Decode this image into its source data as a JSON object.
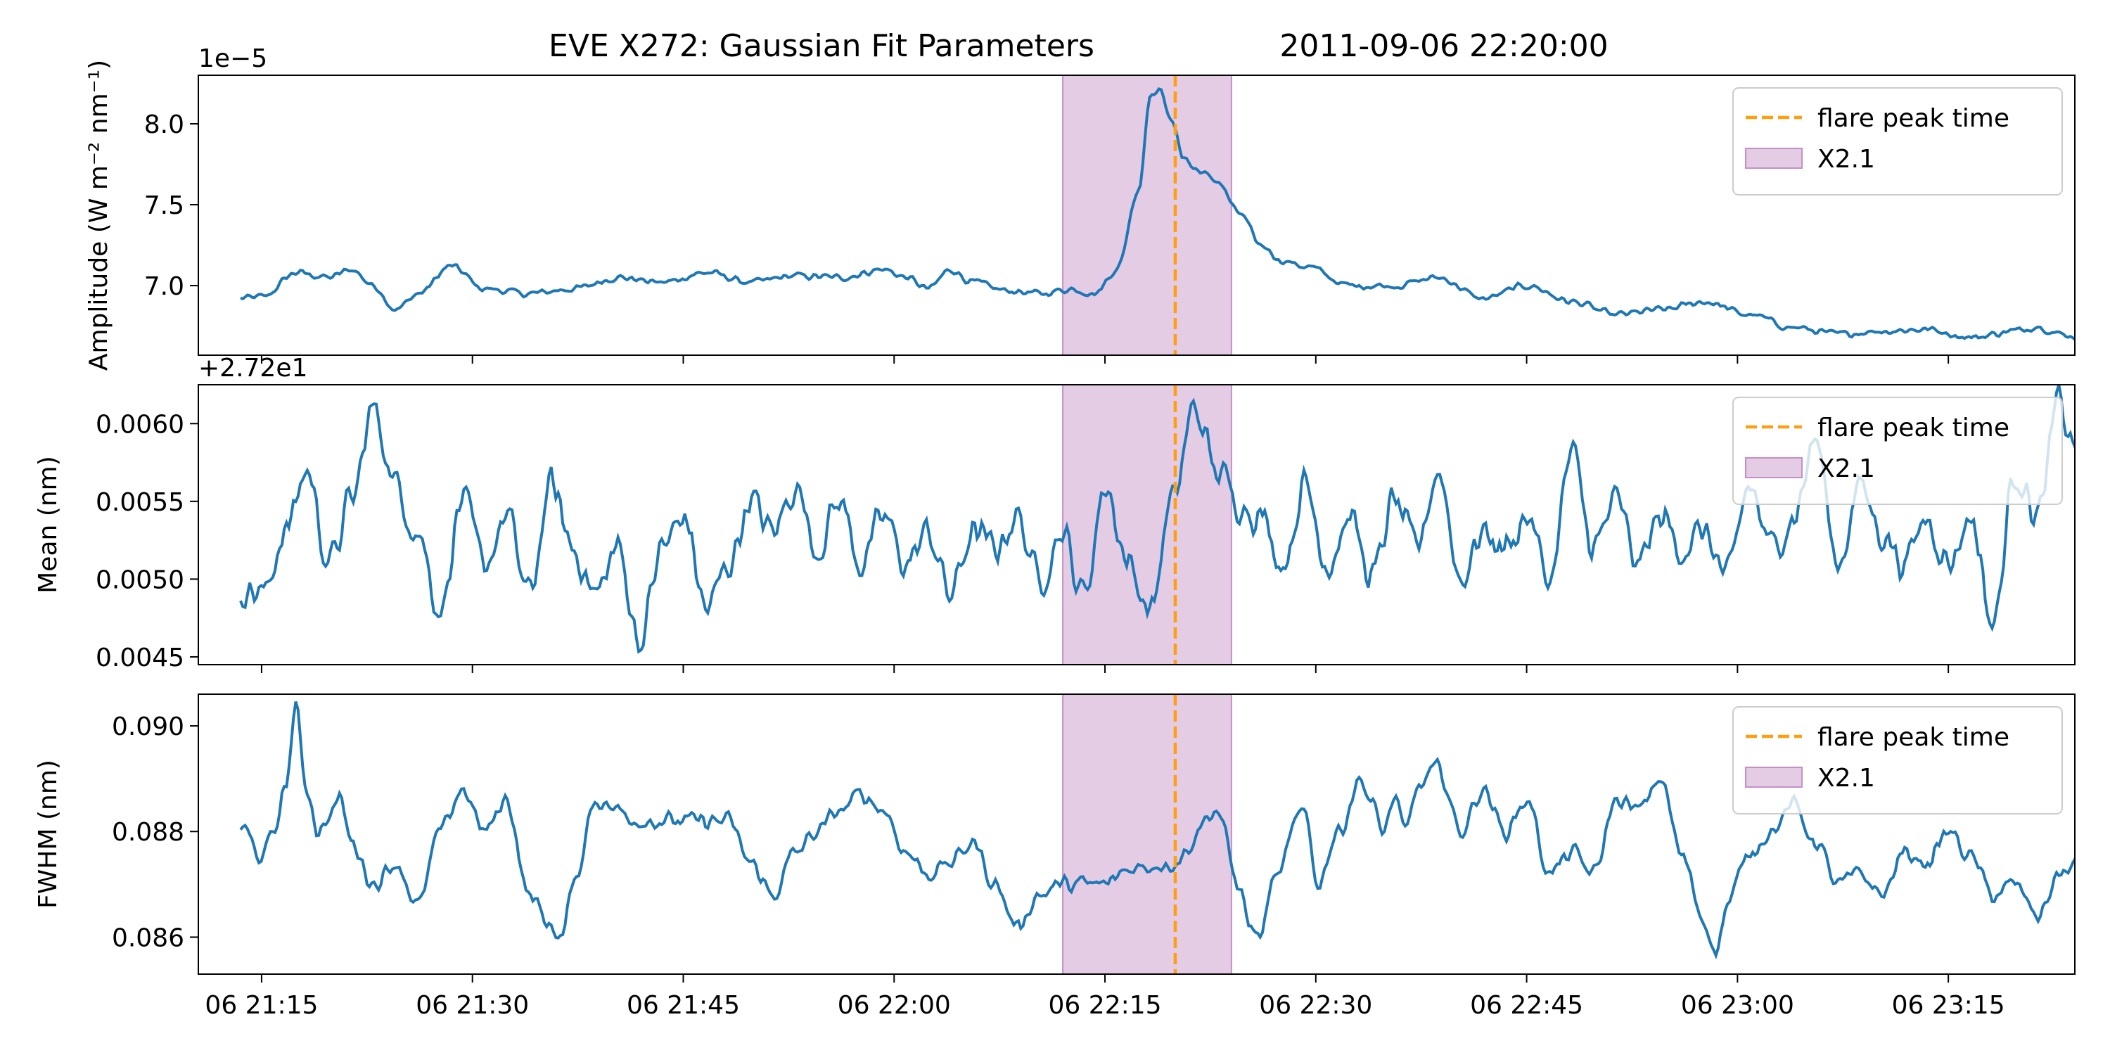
{
  "figure": {
    "title": "EVE X272: Gaussian Fit Parameters",
    "timestamp": "2011-09-06 22:20:00"
  },
  "chart_data": {
    "type": "line",
    "x_axis": {
      "unit": "datetime",
      "range": [
        "2011-09-06 21:10:30",
        "2011-09-06 23:24:00"
      ],
      "ticks": [
        "2011-09-06 21:15:00",
        "2011-09-06 21:30:00",
        "2011-09-06 21:45:00",
        "2011-09-06 22:00:00",
        "2011-09-06 22:15:00",
        "2011-09-06 22:30:00",
        "2011-09-06 22:45:00",
        "2011-09-06 23:00:00",
        "2011-09-06 23:15:00"
      ],
      "tick_labels": [
        "06 21:15",
        "06 21:30",
        "06 21:45",
        "06 22:00",
        "06 22:15",
        "06 22:30",
        "06 22:45",
        "06 23:00",
        "06 23:15"
      ],
      "shared": true
    },
    "flare": {
      "label": "X2.1",
      "start": "2011-09-06 22:12:00",
      "end": "2011-09-06 22:24:00",
      "peak": "2011-09-06 22:20:00",
      "peak_label": "flare peak time",
      "span_color": "#c58fc6",
      "peak_color": "#ff9f0f"
    },
    "line_color": "#1f77b4",
    "legend_position": "upper right",
    "panels": [
      {
        "ylabel": "Amplitude (W m⁻² nm⁻¹)",
        "offset_text": "1e−5",
        "ylim": [
          6.57,
          8.3
        ],
        "yticks": [
          7.0,
          7.5,
          8.0
        ],
        "ytick_labels": [
          "7.0",
          "7.5",
          "8.0"
        ],
        "keypoints": [
          [
            0,
            6.92
          ],
          [
            2,
            6.93
          ],
          [
            5,
            7.08
          ],
          [
            8,
            7.05
          ],
          [
            10,
            7.1
          ],
          [
            12,
            7.0
          ],
          [
            14,
            6.85
          ],
          [
            16,
            6.95
          ],
          [
            19,
            7.12
          ],
          [
            22,
            6.98
          ],
          [
            26,
            6.95
          ],
          [
            30,
            6.98
          ],
          [
            34,
            7.05
          ],
          [
            38,
            7.02
          ],
          [
            42,
            7.08
          ],
          [
            46,
            7.02
          ],
          [
            50,
            7.06
          ],
          [
            54,
            7.05
          ],
          [
            58,
            7.1
          ],
          [
            60,
            7.05
          ],
          [
            62,
            6.98
          ],
          [
            64,
            7.1
          ],
          [
            66,
            7.02
          ],
          [
            69,
            6.97
          ],
          [
            72,
            6.95
          ],
          [
            75,
            6.98
          ],
          [
            77,
            6.95
          ],
          [
            79,
            7.1
          ],
          [
            81,
            7.6
          ],
          [
            82,
            8.18
          ],
          [
            83,
            8.2
          ],
          [
            84,
            8.0
          ],
          [
            85,
            7.8
          ],
          [
            86,
            7.72
          ],
          [
            88,
            7.65
          ],
          [
            90,
            7.45
          ],
          [
            92,
            7.25
          ],
          [
            94,
            7.15
          ],
          [
            96,
            7.12
          ],
          [
            100,
            7.0
          ],
          [
            104,
            7.0
          ],
          [
            108,
            7.05
          ],
          [
            112,
            6.92
          ],
          [
            116,
            7.0
          ],
          [
            120,
            6.9
          ],
          [
            124,
            6.82
          ],
          [
            128,
            6.85
          ],
          [
            132,
            6.9
          ],
          [
            136,
            6.82
          ],
          [
            140,
            6.74
          ],
          [
            144,
            6.7
          ],
          [
            148,
            6.72
          ],
          [
            152,
            6.73
          ],
          [
            156,
            6.68
          ],
          [
            160,
            6.72
          ],
          [
            162,
            6.75
          ],
          [
            164,
            6.7
          ],
          [
            166,
            6.68
          ]
        ],
        "noise_amplitude": 0.03
      },
      {
        "ylabel": "Mean (nm)",
        "offset_text": "+2.72e1",
        "ylim": [
          0.00445,
          0.00625
        ],
        "yticks": [
          0.0045,
          0.005,
          0.0055,
          0.006
        ],
        "ytick_labels": [
          "0.0045",
          "0.0050",
          "0.0055",
          "0.0060"
        ],
        "keypoints": [
          [
            0,
            0.00495
          ],
          [
            2,
            0.0049
          ],
          [
            4,
            0.0053
          ],
          [
            6,
            0.0057
          ],
          [
            8,
            0.0051
          ],
          [
            10,
            0.0055
          ],
          [
            12,
            0.0061
          ],
          [
            14,
            0.0056
          ],
          [
            16,
            0.0053
          ],
          [
            18,
            0.0048
          ],
          [
            20,
            0.0055
          ],
          [
            22,
            0.0051
          ],
          [
            24,
            0.0054
          ],
          [
            26,
            0.0049
          ],
          [
            28,
            0.0056
          ],
          [
            30,
            0.0052
          ],
          [
            32,
            0.0049
          ],
          [
            34,
            0.0052
          ],
          [
            36,
            0.0046
          ],
          [
            38,
            0.0052
          ],
          [
            40,
            0.0054
          ],
          [
            42,
            0.0048
          ],
          [
            44,
            0.0051
          ],
          [
            46,
            0.0055
          ],
          [
            48,
            0.0053
          ],
          [
            50,
            0.0056
          ],
          [
            52,
            0.0052
          ],
          [
            54,
            0.0055
          ],
          [
            56,
            0.0051
          ],
          [
            58,
            0.0054
          ],
          [
            60,
            0.0051
          ],
          [
            62,
            0.0053
          ],
          [
            64,
            0.0049
          ],
          [
            66,
            0.0053
          ],
          [
            68,
            0.0052
          ],
          [
            70,
            0.0054
          ],
          [
            72,
            0.005
          ],
          [
            74,
            0.0053
          ],
          [
            76,
            0.0049
          ],
          [
            78,
            0.0056
          ],
          [
            80,
            0.0051
          ],
          [
            82,
            0.0048
          ],
          [
            84,
            0.0055
          ],
          [
            86,
            0.0061
          ],
          [
            88,
            0.0057
          ],
          [
            90,
            0.0055
          ],
          [
            92,
            0.0054
          ],
          [
            94,
            0.0051
          ],
          [
            96,
            0.0056
          ],
          [
            98,
            0.0051
          ],
          [
            100,
            0.0054
          ],
          [
            102,
            0.005
          ],
          [
            104,
            0.0055
          ],
          [
            106,
            0.0052
          ],
          [
            108,
            0.0057
          ],
          [
            110,
            0.005
          ],
          [
            112,
            0.0053
          ],
          [
            114,
            0.0052
          ],
          [
            116,
            0.0054
          ],
          [
            118,
            0.005
          ],
          [
            120,
            0.0058
          ],
          [
            122,
            0.0052
          ],
          [
            124,
            0.0055
          ],
          [
            126,
            0.0051
          ],
          [
            128,
            0.0054
          ],
          [
            130,
            0.0052
          ],
          [
            132,
            0.0053
          ],
          [
            134,
            0.005
          ],
          [
            136,
            0.0056
          ],
          [
            138,
            0.0052
          ],
          [
            140,
            0.0054
          ],
          [
            142,
            0.0059
          ],
          [
            144,
            0.0051
          ],
          [
            146,
            0.0056
          ],
          [
            148,
            0.0053
          ],
          [
            150,
            0.0051
          ],
          [
            152,
            0.0054
          ],
          [
            154,
            0.0051
          ],
          [
            156,
            0.0054
          ],
          [
            158,
            0.0047
          ],
          [
            160,
            0.0057
          ],
          [
            162,
            0.0054
          ],
          [
            164,
            0.00615
          ],
          [
            165,
            0.0059
          ],
          [
            166,
            0.0058
          ]
        ],
        "noise_amplitude": 0.00016
      },
      {
        "ylabel": "FWHM (nm)",
        "offset_text": "",
        "ylim": [
          0.0853,
          0.0906
        ],
        "yticks": [
          0.086,
          0.088,
          0.09
        ],
        "ytick_labels": [
          "0.086",
          "0.088",
          "0.090"
        ],
        "keypoints": [
          [
            0,
            0.0881
          ],
          [
            2,
            0.0875
          ],
          [
            3,
            0.088
          ],
          [
            4,
            0.0888
          ],
          [
            5,
            0.0903
          ],
          [
            6,
            0.0888
          ],
          [
            7,
            0.088
          ],
          [
            9,
            0.0886
          ],
          [
            10,
            0.0878
          ],
          [
            12,
            0.087
          ],
          [
            14,
            0.0874
          ],
          [
            16,
            0.0866
          ],
          [
            18,
            0.088
          ],
          [
            20,
            0.0888
          ],
          [
            22,
            0.088
          ],
          [
            24,
            0.0886
          ],
          [
            26,
            0.0868
          ],
          [
            28,
            0.0862
          ],
          [
            29,
            0.086
          ],
          [
            30,
            0.087
          ],
          [
            32,
            0.0886
          ],
          [
            34,
            0.0884
          ],
          [
            36,
            0.0882
          ],
          [
            40,
            0.0882
          ],
          [
            44,
            0.0882
          ],
          [
            46,
            0.0874
          ],
          [
            48,
            0.0868
          ],
          [
            50,
            0.0876
          ],
          [
            52,
            0.088
          ],
          [
            54,
            0.0884
          ],
          [
            56,
            0.0887
          ],
          [
            58,
            0.0884
          ],
          [
            60,
            0.0876
          ],
          [
            62,
            0.0872
          ],
          [
            64,
            0.0874
          ],
          [
            66,
            0.0878
          ],
          [
            68,
            0.087
          ],
          [
            70,
            0.0862
          ],
          [
            72,
            0.0868
          ],
          [
            74,
            0.087
          ],
          [
            78,
            0.087
          ],
          [
            80,
            0.0873
          ],
          [
            84,
            0.0874
          ],
          [
            88,
            0.0884
          ],
          [
            90,
            0.087
          ],
          [
            91,
            0.0862
          ],
          [
            92,
            0.086
          ],
          [
            93,
            0.087
          ],
          [
            96,
            0.0885
          ],
          [
            97,
            0.087
          ],
          [
            99,
            0.088
          ],
          [
            101,
            0.089
          ],
          [
            102,
            0.0885
          ],
          [
            103,
            0.088
          ],
          [
            104,
            0.0886
          ],
          [
            105,
            0.088
          ],
          [
            106,
            0.0888
          ],
          [
            108,
            0.0892
          ],
          [
            110,
            0.088
          ],
          [
            112,
            0.0888
          ],
          [
            114,
            0.088
          ],
          [
            116,
            0.0886
          ],
          [
            118,
            0.0872
          ],
          [
            120,
            0.0876
          ],
          [
            122,
            0.0872
          ],
          [
            124,
            0.0886
          ],
          [
            126,
            0.0884
          ],
          [
            128,
            0.089
          ],
          [
            130,
            0.0875
          ],
          [
            132,
            0.0863
          ],
          [
            133,
            0.0857
          ],
          [
            134,
            0.0866
          ],
          [
            136,
            0.0876
          ],
          [
            138,
            0.088
          ],
          [
            140,
            0.0885
          ],
          [
            142,
            0.0878
          ],
          [
            144,
            0.087
          ],
          [
            146,
            0.0872
          ],
          [
            148,
            0.0868
          ],
          [
            150,
            0.0876
          ],
          [
            152,
            0.0874
          ],
          [
            154,
            0.088
          ],
          [
            156,
            0.0875
          ],
          [
            158,
            0.0868
          ],
          [
            160,
            0.087
          ],
          [
            162,
            0.0864
          ],
          [
            164,
            0.0872
          ],
          [
            166,
            0.0874
          ]
        ],
        "noise_amplitude": 0.00022
      }
    ]
  }
}
